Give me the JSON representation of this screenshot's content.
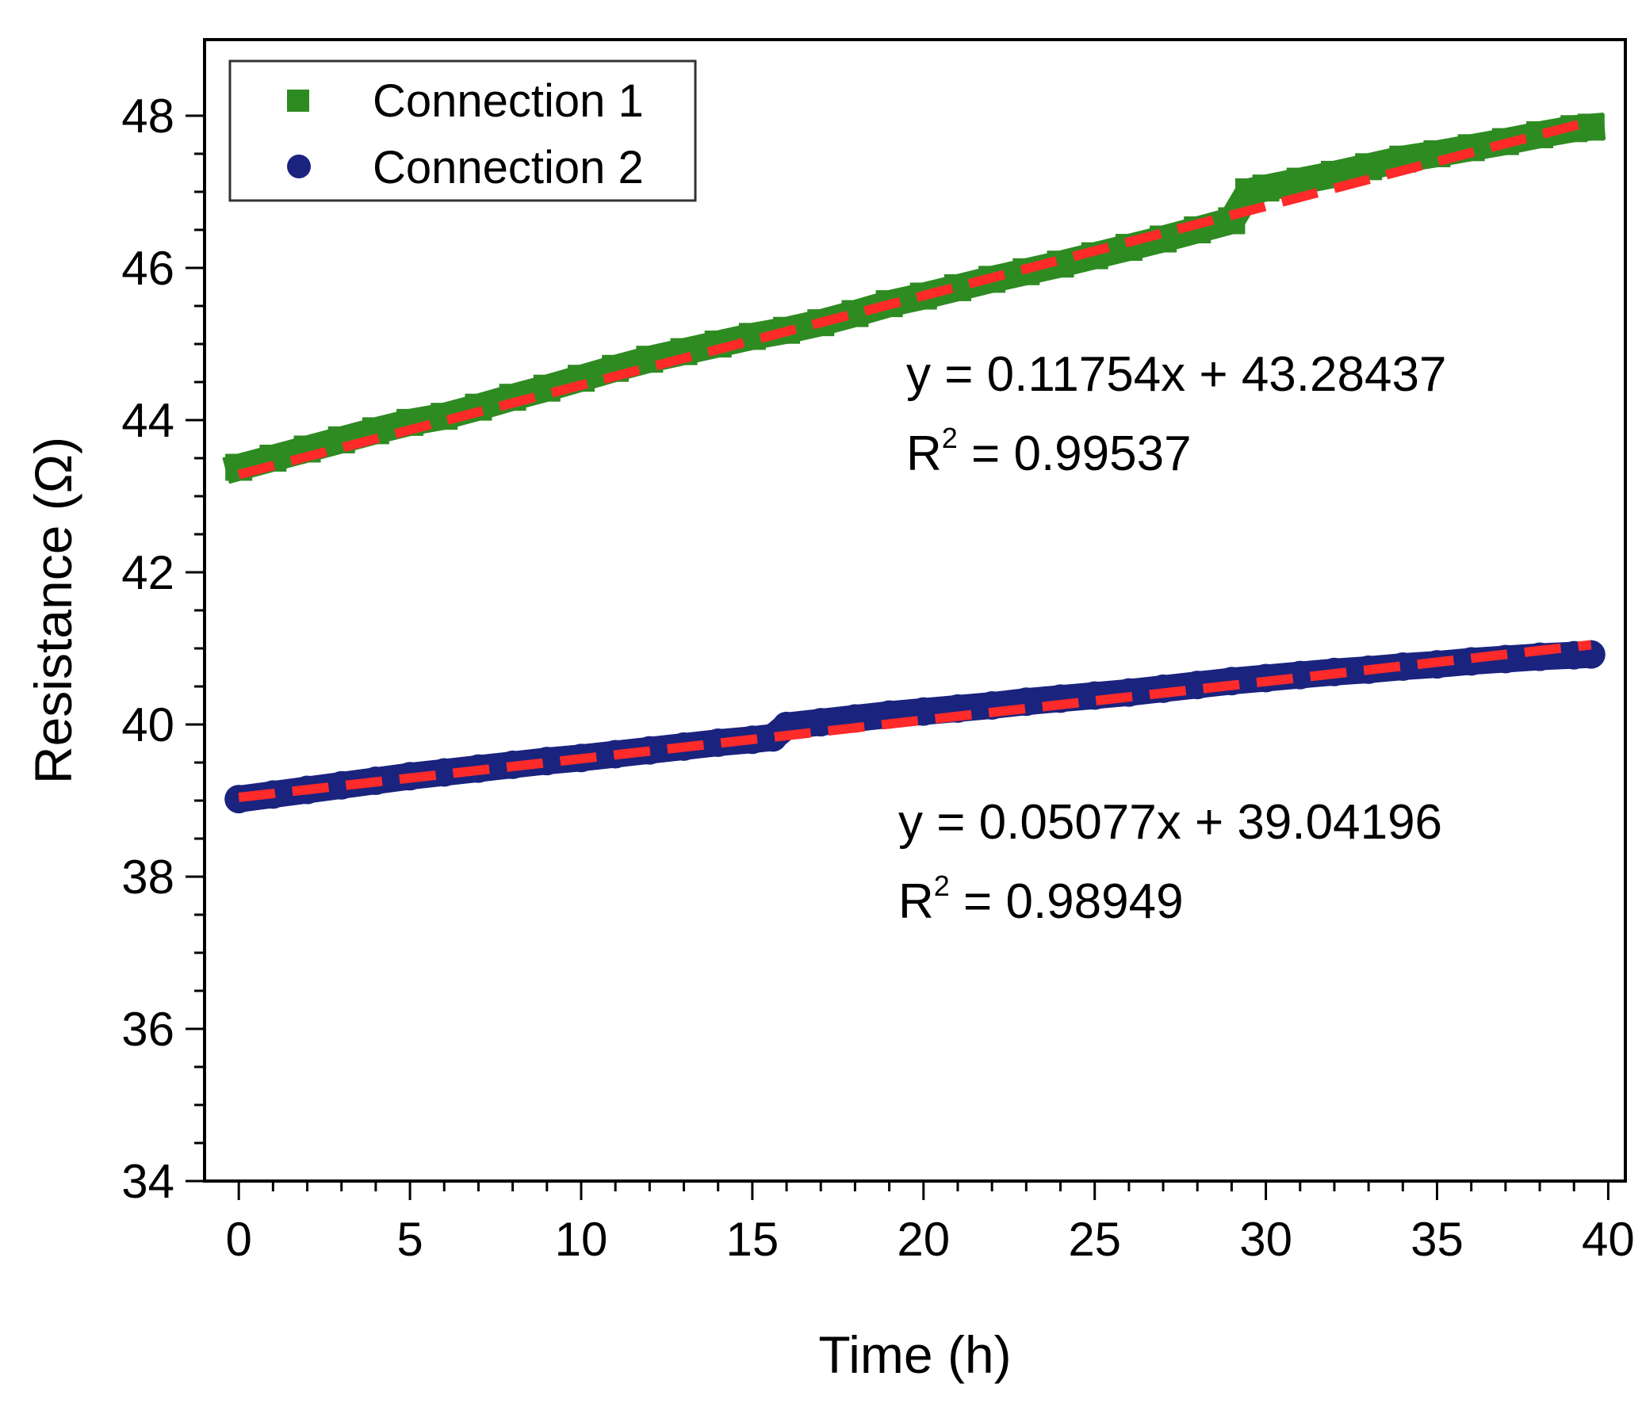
{
  "chart_data": {
    "type": "scatter",
    "title": "",
    "xlabel": "Time (h)",
    "ylabel": "Resistance (Ω)",
    "xlim": [
      -1,
      40.5
    ],
    "ylim": [
      34,
      49
    ],
    "xticks": [
      0,
      5,
      10,
      15,
      20,
      25,
      30,
      35,
      40
    ],
    "xtick_labels": [
      "0",
      "5",
      "10",
      "15",
      "20",
      "25",
      "30",
      "35",
      "40"
    ],
    "yticks": [
      34,
      36,
      38,
      40,
      42,
      44,
      46,
      48
    ],
    "ytick_labels": [
      "34",
      "36",
      "38",
      "40",
      "42",
      "44",
      "46",
      "48"
    ],
    "legend_position": "top-left",
    "series": [
      {
        "name": "Connection 1",
        "marker": "square",
        "color": "#2e8b22",
        "x": [
          0,
          1,
          2,
          3,
          4,
          5,
          6,
          7,
          8,
          9,
          10,
          11,
          12,
          13,
          14,
          15,
          16,
          17,
          18,
          19,
          20,
          21,
          22,
          23,
          24,
          25,
          26,
          27,
          28,
          29,
          29.5,
          30,
          31,
          32,
          33,
          34,
          35,
          36,
          37,
          38,
          39,
          39.5
        ],
        "values": [
          43.38,
          43.5,
          43.62,
          43.74,
          43.86,
          43.97,
          44.05,
          44.17,
          44.3,
          44.42,
          44.55,
          44.68,
          44.8,
          44.9,
          45.0,
          45.1,
          45.18,
          45.28,
          45.4,
          45.53,
          45.63,
          45.74,
          45.85,
          45.95,
          46.05,
          46.16,
          46.27,
          46.38,
          46.5,
          46.62,
          47.0,
          47.05,
          47.14,
          47.23,
          47.33,
          47.43,
          47.5,
          47.58,
          47.66,
          47.75,
          47.83,
          47.85
        ],
        "fit": {
          "slope": 0.11754,
          "intercept": 43.28437,
          "x_range": [
            0,
            39.5
          ]
        },
        "equation": "y = 0.11754x + 43.28437",
        "r2_prefix": "R",
        "r2_exp": "2",
        "r2_value": " = 0.99537"
      },
      {
        "name": "Connection 2",
        "marker": "circle",
        "color": "#1a237e",
        "x": [
          0,
          1,
          2,
          3,
          4,
          5,
          6,
          7,
          8,
          9,
          10,
          11,
          12,
          13,
          14,
          15,
          15.6,
          16,
          17,
          18,
          19,
          20,
          21,
          22,
          23,
          24,
          25,
          26,
          27,
          28,
          29,
          30,
          31,
          32,
          33,
          34,
          35,
          36,
          37,
          38,
          39,
          39.5
        ],
        "values": [
          39.02,
          39.08,
          39.14,
          39.2,
          39.26,
          39.32,
          39.37,
          39.42,
          39.47,
          39.52,
          39.56,
          39.61,
          39.66,
          39.71,
          39.76,
          39.8,
          39.83,
          39.98,
          40.03,
          40.08,
          40.13,
          40.17,
          40.21,
          40.25,
          40.3,
          40.34,
          40.38,
          40.42,
          40.47,
          40.52,
          40.57,
          40.61,
          40.65,
          40.69,
          40.72,
          40.76,
          40.79,
          40.83,
          40.86,
          40.89,
          40.91,
          40.92
        ],
        "fit": {
          "slope": 0.05077,
          "intercept": 39.04196,
          "x_range": [
            0,
            39.5
          ]
        },
        "equation": "y = 0.05077x + 39.04196",
        "r2_prefix": "R",
        "r2_exp": "2",
        "r2_value": " = 0.98949"
      }
    ],
    "fit_line_color": "#ff2a2a"
  }
}
